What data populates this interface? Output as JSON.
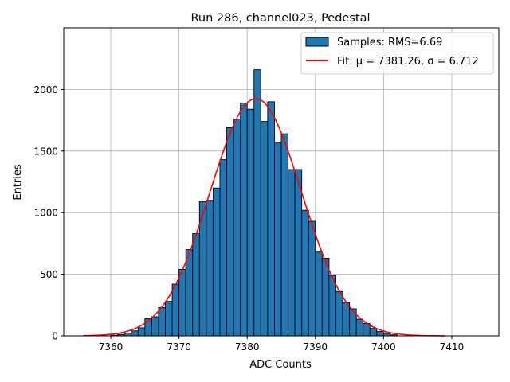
{
  "chart_data": {
    "type": "bar",
    "title": "Run 286, channel023, Pedestal",
    "xlabel": "ADC Counts",
    "ylabel": "Entries",
    "xlim": [
      7353.1,
      7416.9
    ],
    "ylim": [
      0,
      2500
    ],
    "xticks": [
      7360,
      7370,
      7380,
      7390,
      7400,
      7410
    ],
    "yticks": [
      0,
      500,
      1000,
      1500,
      2000
    ],
    "grid": true,
    "legend_position": "top-right",
    "colors": {
      "bars": "#1f77b4",
      "bar_edge": "#000000",
      "fit": "#ff0000",
      "grid": "#b0b0b0"
    },
    "series": [
      {
        "name": "Samples: RMS=6.69",
        "type": "histogram",
        "bin_width": 1,
        "bin_start": [
          7360,
          7361,
          7362,
          7363,
          7364,
          7365,
          7366,
          7367,
          7368,
          7369,
          7370,
          7371,
          7372,
          7373,
          7374,
          7375,
          7376,
          7377,
          7378,
          7379,
          7380,
          7381,
          7382,
          7383,
          7384,
          7385,
          7386,
          7387,
          7388,
          7389,
          7390,
          7391,
          7392,
          7393,
          7394,
          7395,
          7396,
          7397,
          7398,
          7399,
          7400,
          7401
        ],
        "values": [
          5,
          12,
          22,
          40,
          65,
          140,
          155,
          230,
          280,
          420,
          540,
          700,
          830,
          1090,
          1100,
          1200,
          1430,
          1690,
          1760,
          1890,
          1840,
          2160,
          1740,
          1900,
          1570,
          1640,
          1350,
          1350,
          1020,
          930,
          680,
          630,
          490,
          360,
          270,
          220,
          135,
          100,
          60,
          35,
          20,
          8
        ]
      },
      {
        "name": "Fit: μ = 7381.26, σ = 6.712",
        "type": "line",
        "model": "gaussian",
        "mu": 7381.26,
        "sigma": 6.712,
        "amplitude": 1925,
        "x_range": [
          7356,
          7409
        ]
      }
    ]
  }
}
